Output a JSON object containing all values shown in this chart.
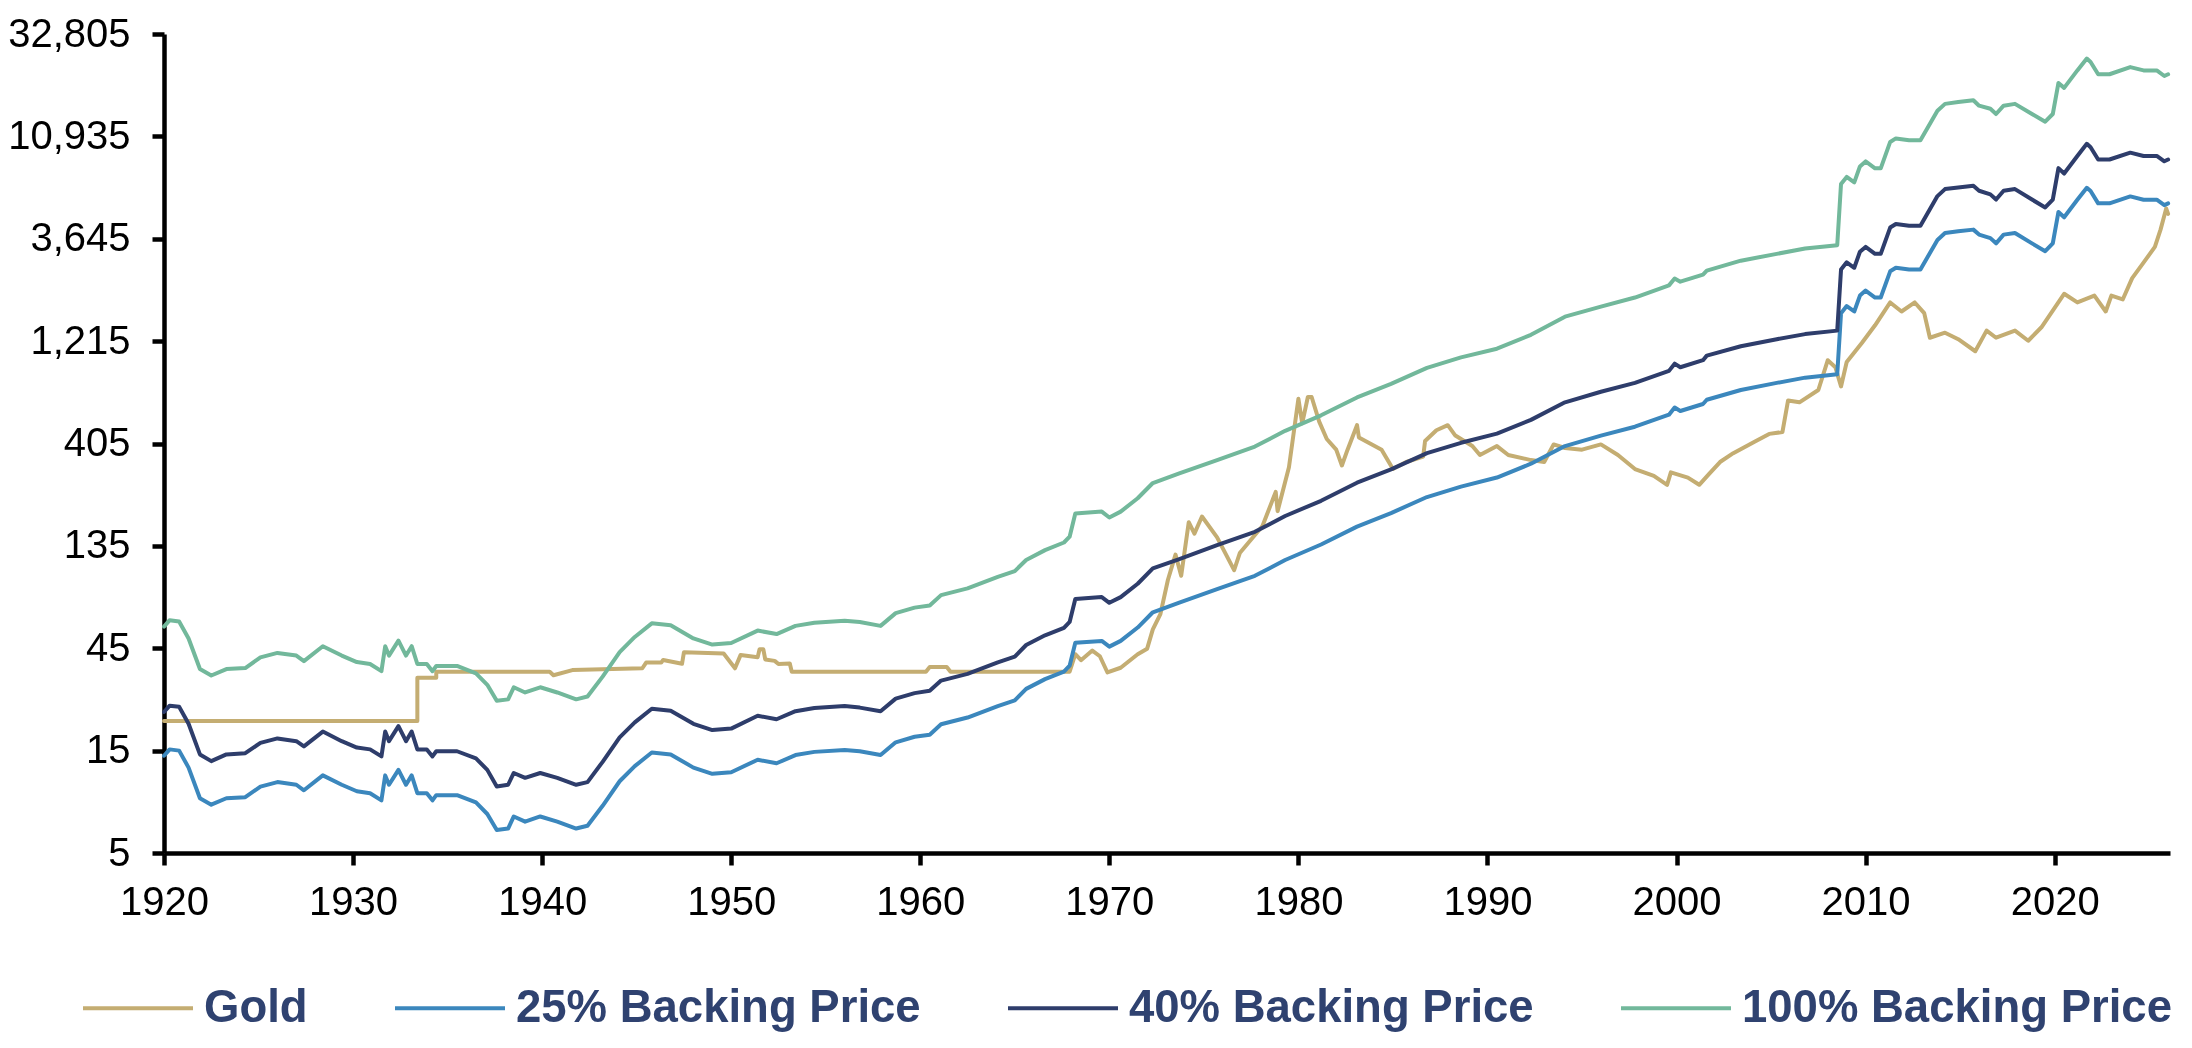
{
  "chart_data": {
    "type": "line",
    "xlim": [
      1920,
      2026.1
    ],
    "xticks": [
      1920,
      1930,
      1940,
      1950,
      1960,
      1970,
      1980,
      1990,
      2000,
      2010,
      2020
    ],
    "ylim": [
      5,
      32805
    ],
    "yticks": [
      5,
      15,
      45,
      135,
      405,
      {
        "value": 1215,
        "label": "1,215"
      },
      {
        "value": 3645,
        "label": "3,645"
      },
      {
        "value": 10935,
        "label": "10,935"
      },
      {
        "value": 32805,
        "label": "32,805"
      }
    ],
    "log": "y",
    "legend": "bottom",
    "x": [
      1920.0,
      1920.3,
      1920.8,
      1921.3,
      1921.9,
      1922.5,
      1923.3,
      1924.3,
      1925.1,
      1926.0,
      1927.0,
      1927.4,
      1928.4,
      1929.4,
      1930.2,
      1930.9,
      1931.5,
      1931.7,
      1931.9,
      1932.4,
      1932.8,
      1933.1,
      1933.4,
      1933.9,
      1934.2,
      1934.4,
      1935.5,
      1936.5,
      1937.1,
      1937.6,
      1938.2,
      1938.5,
      1939.1,
      1939.9,
      1940.8,
      1941.8,
      1942.4,
      1943.2,
      1944.1,
      1944.9,
      1945.8,
      1946.8,
      1948.0,
      1949.0,
      1950.0,
      1951.4,
      1952.4,
      1953.4,
      1954.4,
      1956.0,
      1956.8,
      1957.9,
      1958.7,
      1959.7,
      1960.5,
      1961.1,
      1962.5,
      1964.1,
      1965.0,
      1965.6,
      1966.6,
      1967.6,
      1967.9,
      1968.2,
      1969.6,
      1970.0,
      1970.6,
      1971.5,
      1972.3,
      1973.7,
      1975.7,
      1977.7,
      1979.3,
      1981.2,
      1983.1,
      1984.9,
      1986.8,
      1988.6,
      1990.5,
      1992.3,
      1994.1,
      1996.0,
      1997.8,
      1999.6,
      1999.9,
      2000.2,
      2001.4,
      2001.6,
      2003.4,
      2005.3,
      2006.8,
      2008.5,
      2008.7,
      2009.0,
      2009.4,
      2009.7,
      2010.0,
      2010.5,
      2010.8,
      2011.3,
      2011.6,
      2012.3,
      2012.9,
      2013.8,
      2014.2,
      2014.9,
      2015.7,
      2016.0,
      2016.6,
      2016.9,
      2017.3,
      2017.9,
      2018.8,
      2019.5,
      2019.9,
      2020.2,
      2020.5,
      2021.2,
      2021.7,
      2021.9,
      2022.3,
      2022.9,
      2024.0,
      2024.7,
      2025.4,
      2025.8,
      2026.0
    ],
    "series": [
      {
        "name": "Gold",
        "color": "#c4ad72",
        "x": [
          1920.0,
          1933.4,
          1933.4,
          1934.4,
          1934.4,
          1940.4,
          1940.6,
          1941.6,
          1945.3,
          1945.5,
          1946.3,
          1946.4,
          1947.4,
          1947.5,
          1949.6,
          1950.2,
          1950.5,
          1951.4,
          1951.5,
          1951.7,
          1951.8,
          1952.3,
          1952.5,
          1953.1,
          1953.2,
          1960.3,
          1960.5,
          1961.4,
          1961.6,
          1967.9,
          1968.2,
          1968.5,
          1969.1,
          1969.5,
          1969.9,
          1970.6,
          1971.5,
          1972.0,
          1972.3,
          1972.7,
          1973.1,
          1973.5,
          1973.8,
          1974.2,
          1974.5,
          1974.9,
          1975.7,
          1976.6,
          1976.9,
          1978.1,
          1978.8,
          1978.9,
          1979.5,
          1980.0,
          1980.2,
          1980.5,
          1980.7,
          1981.1,
          1981.5,
          1982.0,
          1982.3,
          1982.6,
          1983.1,
          1983.2,
          1984.4,
          1985.0,
          1985.7,
          1986.6,
          1986.7,
          1987.3,
          1987.9,
          1988.3,
          1989.2,
          1989.6,
          1990.5,
          1991.1,
          1992.3,
          1993.0,
          1993.5,
          1994.1,
          1995.0,
          1996.0,
          1996.9,
          1997.8,
          1998.8,
          1999.5,
          1999.7,
          2000.6,
          2001.2,
          2001.7,
          2002.3,
          2003.0,
          2004.2,
          2004.9,
          2005.6,
          2005.9,
          2006.5,
          2007.5,
          2008.0,
          2008.4,
          2008.7,
          2009.0,
          2009.8,
          2010.5,
          2011.3,
          2011.9,
          2012.6,
          2013.1,
          2013.4,
          2014.2,
          2014.9,
          2015.8,
          2016.4,
          2016.9,
          2017.9,
          2018.6,
          2019.3,
          2020.5,
          2021.2,
          2022.1,
          2022.7,
          2023.0,
          2023.6,
          2024.1,
          2024.7,
          2025.3,
          2025.6,
          2025.9,
          2026.0
        ],
        "values": [
          20.6,
          20.6,
          32.8,
          32.8,
          35.0,
          35.0,
          33.7,
          35.6,
          36.3,
          38.6,
          38.6,
          39.7,
          38.1,
          43.1,
          42.5,
          36.3,
          41.9,
          40.9,
          44.5,
          44.5,
          39.9,
          39.3,
          38.0,
          38.2,
          35.0,
          35.0,
          36.8,
          36.8,
          35.0,
          35.0,
          42.2,
          39.6,
          43.9,
          41.3,
          34.7,
          36.5,
          42.2,
          44.8,
          55.1,
          64.9,
          93.9,
          123,
          97.9,
          174,
          154,
          185,
          148,
          104,
          125,
          167,
          241,
          196,
          314,
          655,
          503,
          667,
          667,
          512,
          425,
          379,
          320,
          379,
          493,
          432,
          379,
          308,
          332,
          352,
          416,
          467,
          493,
          441,
          394,
          358,
          394,
          358,
          339,
          332,
          401,
          386,
          379,
          401,
          358,
          308,
          286,
          260,
          297,
          281,
          260,
          291,
          332,
          365,
          416,
          449,
          458,
          643,
          630,
          719,
          990,
          918,
          747,
          971,
          1190,
          1440,
          1840,
          1670,
          1840,
          1640,
          1260,
          1330,
          1240,
          1090,
          1360,
          1260,
          1360,
          1220,
          1410,
          2020,
          1840,
          1980,
          1670,
          1980,
          1900,
          2390,
          2820,
          3340,
          4020,
          5040,
          4760
        ]
      },
      {
        "name": "25% Backing Price",
        "color": "#3b87bd",
        "values": [
          14.2,
          15.2,
          15.0,
          12.5,
          9.0,
          8.4,
          9.0,
          9.1,
          10.2,
          10.7,
          10.4,
          9.8,
          11.5,
          10.4,
          9.7,
          9.5,
          8.8,
          11.5,
          10.4,
          12.2,
          10.4,
          11.5,
          9.5,
          9.5,
          8.8,
          9.3,
          9.3,
          8.6,
          7.6,
          6.4,
          6.5,
          7.4,
          7.0,
          7.4,
          7.0,
          6.5,
          6.7,
          8.3,
          10.8,
          12.7,
          14.7,
          14.4,
          12.5,
          11.7,
          11.9,
          13.6,
          13.1,
          14.3,
          14.8,
          15.1,
          14.9,
          14.3,
          16.4,
          17.4,
          17.8,
          19.9,
          21.4,
          24.2,
          25.7,
          29.1,
          32.3,
          35.0,
          37.3,
          47.7,
          48.7,
          45.8,
          48.7,
          56.2,
          66.2,
          73.4,
          84.8,
          97.9,
          116,
          137,
          166,
          192,
          228,
          255,
          281,
          326,
          394,
          441,
          485,
          552,
          596,
          574,
          619,
          648,
          719,
          776,
          821,
          851,
          1640,
          1770,
          1670,
          1980,
          2090,
          1940,
          1940,
          2570,
          2670,
          2620,
          2620,
          3600,
          3880,
          3950,
          4020,
          3810,
          3670,
          3470,
          3810,
          3880,
          3470,
          3190,
          3470,
          4860,
          4590,
          5540,
          6300,
          6080,
          5330,
          5330,
          5740,
          5540,
          5540,
          5230,
          5330
        ]
      },
      {
        "name": "40% Backing Price",
        "color": "#2e3d6b",
        "values": [
          22.7,
          24.3,
          24.0,
          20.0,
          14.4,
          13.4,
          14.4,
          14.6,
          16.3,
          17.1,
          16.6,
          15.7,
          18.4,
          16.6,
          15.5,
          15.2,
          14.1,
          18.4,
          16.6,
          19.5,
          16.6,
          18.4,
          15.2,
          15.2,
          14.1,
          14.9,
          14.9,
          13.8,
          12.2,
          10.2,
          10.4,
          11.8,
          11.2,
          11.8,
          11.2,
          10.4,
          10.7,
          13.3,
          17.3,
          20.3,
          23.5,
          23.0,
          20.0,
          18.7,
          19.0,
          21.8,
          21.0,
          22.9,
          23.7,
          24.2,
          23.8,
          22.9,
          26.2,
          27.8,
          28.5,
          31.8,
          34.2,
          38.7,
          41.1,
          46.6,
          51.7,
          56.0,
          59.7,
          76.3,
          77.9,
          73.3,
          77.9,
          89.9,
          106,
          117,
          136,
          157,
          186,
          219,
          266,
          307,
          365,
          408,
          450,
          522,
          630,
          706,
          776,
          883,
          954,
          918,
          990,
          1040,
          1150,
          1240,
          1310,
          1360,
          2620,
          2830,
          2670,
          3170,
          3340,
          3100,
          3100,
          4110,
          4270,
          4190,
          4190,
          5760,
          6210,
          6320,
          6430,
          6100,
          5870,
          5550,
          6100,
          6210,
          5550,
          5100,
          5550,
          7780,
          7340,
          8860,
          10100,
          9730,
          8530,
          8530,
          9180,
          8860,
          8860,
          8370,
          8530
        ]
      },
      {
        "name": "100% Backing Price",
        "color": "#72b89b",
        "values": [
          56.8,
          60.8,
          60.0,
          50.0,
          36.0,
          33.6,
          36.0,
          36.4,
          40.8,
          42.8,
          41.6,
          39.2,
          46.0,
          41.6,
          38.8,
          38.0,
          35.2,
          46.0,
          41.6,
          48.8,
          41.6,
          46.0,
          38.0,
          38.0,
          35.2,
          37.2,
          37.2,
          34.4,
          30.4,
          25.6,
          26.0,
          29.6,
          28.0,
          29.6,
          28.0,
          26.0,
          26.8,
          33.2,
          43.2,
          50.8,
          58.8,
          57.6,
          50.0,
          46.8,
          47.6,
          54.4,
          52.4,
          57.2,
          59.2,
          60.4,
          59.6,
          57.2,
          65.6,
          69.6,
          71.2,
          79.6,
          85.6,
          96.8,
          103,
          116,
          129,
          140,
          149,
          191,
          195,
          183,
          195,
          225,
          265,
          294,
          339,
          392,
          464,
          548,
          664,
          768,
          912,
          1020,
          1120,
          1300,
          1580,
          1760,
          1940,
          2210,
          2380,
          2300,
          2480,
          2590,
          2880,
          3100,
          3280,
          3400,
          6560,
          7080,
          6680,
          7920,
          8360,
          7760,
          7760,
          10300,
          10700,
          10500,
          10500,
          14400,
          15500,
          15800,
          16100,
          15200,
          14700,
          13900,
          15200,
          15500,
          13900,
          12800,
          13900,
          19400,
          18400,
          22200,
          25200,
          24300,
          21300,
          21300,
          23000,
          22200,
          22200,
          20900,
          21300
        ]
      }
    ]
  }
}
